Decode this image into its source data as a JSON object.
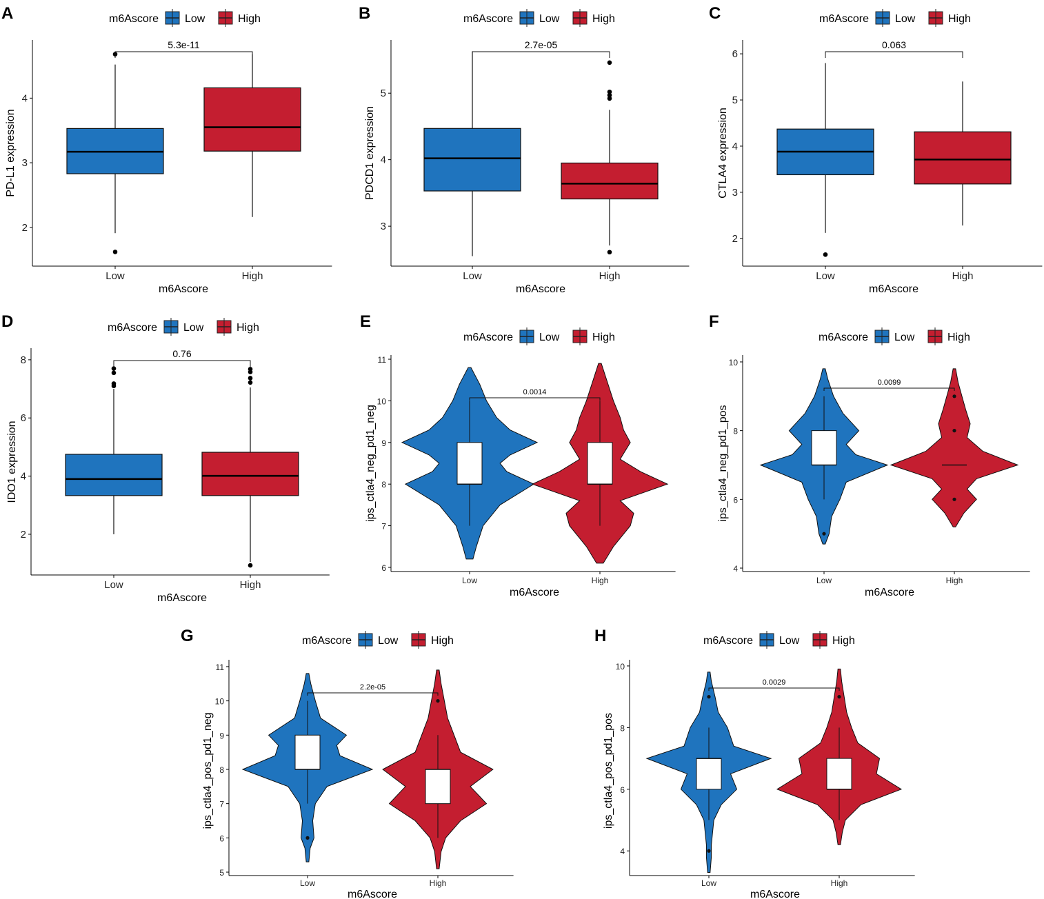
{
  "colors": {
    "low": "#1f74be",
    "high": "#c41e30"
  },
  "chart_data": [
    {
      "panel": "A",
      "type": "box",
      "title": "",
      "legend": {
        "title": "m6Ascore",
        "items": [
          "Low",
          "High"
        ]
      },
      "xlabel": "m6Ascore",
      "ylabel": "PD-L1 expression",
      "categories": [
        "Low",
        "High"
      ],
      "ylim": [
        1.4,
        4.9
      ],
      "yticks": [
        "2",
        "3",
        "4"
      ],
      "pvalue": "5.3e-11",
      "groups": [
        {
          "name": "Low",
          "q1": 2.83,
          "median": 3.17,
          "q3": 3.53,
          "whisker_low": 1.91,
          "whisker_high": 4.52,
          "outliers": [
            4.68,
            1.62
          ]
        },
        {
          "name": "High",
          "q1": 3.18,
          "median": 3.55,
          "q3": 4.16,
          "whisker_low": 2.16,
          "whisker_high": 4.68,
          "outliers": []
        }
      ]
    },
    {
      "panel": "B",
      "type": "box",
      "title": "",
      "legend": {
        "title": "m6Ascore",
        "items": [
          "Low",
          "High"
        ]
      },
      "xlabel": "m6Ascore",
      "ylabel": "PDCD1 expression",
      "categories": [
        "Low",
        "High"
      ],
      "ylim": [
        2.4,
        5.8
      ],
      "yticks": [
        "3",
        "4",
        "5"
      ],
      "pvalue": "2.7e-05",
      "groups": [
        {
          "name": "Low",
          "q1": 3.53,
          "median": 4.02,
          "q3": 4.47,
          "whisker_low": 2.55,
          "whisker_high": 5.63,
          "outliers": []
        },
        {
          "name": "High",
          "q1": 3.41,
          "median": 3.64,
          "q3": 3.95,
          "whisker_low": 2.71,
          "whisker_high": 4.75,
          "outliers": [
            5.46,
            5.02,
            4.97,
            4.92,
            2.61
          ]
        }
      ]
    },
    {
      "panel": "C",
      "type": "box",
      "title": "",
      "legend": {
        "title": "m6Ascore",
        "items": [
          "Low",
          "High"
        ]
      },
      "xlabel": "m6Ascore",
      "ylabel": "CTLA4 expression",
      "categories": [
        "Low",
        "High"
      ],
      "ylim": [
        1.4,
        6.3
      ],
      "yticks": [
        "2",
        "3",
        "4",
        "5",
        "6"
      ],
      "pvalue": "0.063",
      "groups": [
        {
          "name": "Low",
          "q1": 3.38,
          "median": 3.88,
          "q3": 4.37,
          "whisker_low": 2.12,
          "whisker_high": 5.8,
          "outliers": [
            1.65
          ]
        },
        {
          "name": "High",
          "q1": 3.18,
          "median": 3.71,
          "q3": 4.31,
          "whisker_low": 2.28,
          "whisker_high": 5.4,
          "outliers": []
        }
      ]
    },
    {
      "panel": "D",
      "type": "box",
      "title": "",
      "legend": {
        "title": "m6Ascore",
        "items": [
          "Low",
          "High"
        ]
      },
      "xlabel": "m6Ascore",
      "ylabel": "IDO1 expression",
      "categories": [
        "Low",
        "High"
      ],
      "ylim": [
        0.6,
        8.4
      ],
      "yticks": [
        "2",
        "4",
        "6",
        "8"
      ],
      "pvalue": "0.76",
      "groups": [
        {
          "name": "Low",
          "q1": 3.33,
          "median": 3.9,
          "q3": 4.75,
          "whisker_low": 2.0,
          "whisker_high": 7.0,
          "outliers": [
            7.7,
            7.55,
            7.18,
            7.1
          ]
        },
        {
          "name": "High",
          "q1": 3.33,
          "median": 4.01,
          "q3": 4.82,
          "whisker_low": 1.05,
          "whisker_high": 7.05,
          "outliers": [
            7.68,
            7.58,
            7.37,
            7.22,
            0.93
          ]
        }
      ]
    },
    {
      "panel": "E",
      "type": "violin",
      "title": "",
      "legend": {
        "title": "m6Ascore",
        "items": [
          "Low",
          "High"
        ]
      },
      "xlabel": "m6Ascore",
      "ylabel": "ips_ctla4_neg_pd1_neg",
      "categories": [
        "Low",
        "High"
      ],
      "ylim": [
        5.9,
        11.1
      ],
      "yticks": [
        "6",
        "7",
        "8",
        "9",
        "10",
        "11"
      ],
      "pvalue": "0.0014",
      "groups": [
        {
          "name": "Low",
          "q1": 8,
          "median": 8,
          "q3": 9,
          "whisker_low": 7,
          "whisker_high": 10,
          "outliers": [],
          "density": [
            [
              6.2,
              0.05
            ],
            [
              6.5,
              0.1
            ],
            [
              7.0,
              0.2
            ],
            [
              7.5,
              0.45
            ],
            [
              8.0,
              0.95
            ],
            [
              8.3,
              0.55
            ],
            [
              8.5,
              0.45
            ],
            [
              8.7,
              0.6
            ],
            [
              9.0,
              1.0
            ],
            [
              9.3,
              0.6
            ],
            [
              9.6,
              0.4
            ],
            [
              10.0,
              0.25
            ],
            [
              10.4,
              0.15
            ],
            [
              10.8,
              0.02
            ]
          ]
        },
        {
          "name": "High",
          "q1": 8,
          "median": 8,
          "q3": 9,
          "whisker_low": 7,
          "whisker_high": 10,
          "outliers": [],
          "density": [
            [
              6.1,
              0.05
            ],
            [
              6.5,
              0.2
            ],
            [
              7.0,
              0.45
            ],
            [
              7.3,
              0.5
            ],
            [
              7.6,
              0.3
            ],
            [
              8.0,
              1.0
            ],
            [
              8.3,
              0.6
            ],
            [
              8.6,
              0.3
            ],
            [
              9.0,
              0.45
            ],
            [
              9.3,
              0.35
            ],
            [
              9.6,
              0.3
            ],
            [
              10.0,
              0.2
            ],
            [
              10.5,
              0.1
            ],
            [
              10.9,
              0.02
            ]
          ]
        }
      ]
    },
    {
      "panel": "F",
      "type": "violin",
      "title": "",
      "legend": {
        "title": "m6Ascore",
        "items": [
          "Low",
          "High"
        ]
      },
      "xlabel": "m6Ascore",
      "ylabel": "ips_ctla4_neg_pd1_pos",
      "categories": [
        "Low",
        "High"
      ],
      "ylim": [
        3.9,
        10.2
      ],
      "yticks": [
        "4",
        "6",
        "8",
        "10"
      ],
      "pvalue": "0.0099",
      "groups": [
        {
          "name": "Low",
          "q1": 7,
          "median": 7,
          "q3": 8,
          "whisker_low": 6,
          "whisker_high": 9,
          "outliers": [
            5
          ],
          "density": [
            [
              4.7,
              0.02
            ],
            [
              5.0,
              0.08
            ],
            [
              5.5,
              0.12
            ],
            [
              6.0,
              0.25
            ],
            [
              6.5,
              0.35
            ],
            [
              7.0,
              1.0
            ],
            [
              7.3,
              0.5
            ],
            [
              7.6,
              0.35
            ],
            [
              8.0,
              0.55
            ],
            [
              8.5,
              0.3
            ],
            [
              9.0,
              0.15
            ],
            [
              9.5,
              0.06
            ],
            [
              9.8,
              0.02
            ]
          ]
        },
        {
          "name": "High",
          "q1": 7,
          "median": 7,
          "q3": 7,
          "whisker_low": 7,
          "whisker_high": 7,
          "outliers": [
            9,
            8,
            6
          ],
          "density": [
            [
              5.2,
              0.02
            ],
            [
              5.6,
              0.15
            ],
            [
              6.0,
              0.35
            ],
            [
              6.3,
              0.2
            ],
            [
              6.6,
              0.35
            ],
            [
              7.0,
              1.0
            ],
            [
              7.4,
              0.45
            ],
            [
              7.8,
              0.2
            ],
            [
              8.2,
              0.25
            ],
            [
              8.6,
              0.18
            ],
            [
              9.0,
              0.12
            ],
            [
              9.4,
              0.06
            ],
            [
              9.8,
              0.02
            ]
          ]
        }
      ]
    },
    {
      "panel": "G",
      "type": "violin",
      "title": "",
      "legend": {
        "title": "m6Ascore",
        "items": [
          "Low",
          "High"
        ]
      },
      "xlabel": "m6Ascore",
      "ylabel": "ips_ctla4_pos_pd1_neg",
      "categories": [
        "Low",
        "High"
      ],
      "ylim": [
        4.9,
        11.2
      ],
      "yticks": [
        "5",
        "6",
        "7",
        "8",
        "9",
        "10",
        "11"
      ],
      "pvalue": "2.2e-05",
      "groups": [
        {
          "name": "Low",
          "q1": 8,
          "median": 8,
          "q3": 9,
          "whisker_low": 7,
          "whisker_high": 10,
          "outliers": [
            6
          ],
          "density": [
            [
              5.3,
              0.02
            ],
            [
              5.7,
              0.04
            ],
            [
              6.0,
              0.1
            ],
            [
              6.5,
              0.08
            ],
            [
              7.0,
              0.12
            ],
            [
              7.5,
              0.3
            ],
            [
              8.0,
              1.0
            ],
            [
              8.4,
              0.5
            ],
            [
              8.7,
              0.45
            ],
            [
              9.0,
              0.6
            ],
            [
              9.5,
              0.2
            ],
            [
              10.0,
              0.12
            ],
            [
              10.5,
              0.05
            ],
            [
              10.8,
              0.02
            ]
          ]
        },
        {
          "name": "High",
          "q1": 7,
          "median": 8,
          "q3": 8,
          "whisker_low": 6,
          "whisker_high": 9,
          "outliers": [
            10
          ],
          "density": [
            [
              5.1,
              0.02
            ],
            [
              5.6,
              0.05
            ],
            [
              6.0,
              0.12
            ],
            [
              6.5,
              0.35
            ],
            [
              7.0,
              0.75
            ],
            [
              7.5,
              0.5
            ],
            [
              8.0,
              0.85
            ],
            [
              8.5,
              0.35
            ],
            [
              9.0,
              0.25
            ],
            [
              9.5,
              0.15
            ],
            [
              10.0,
              0.1
            ],
            [
              10.5,
              0.05
            ],
            [
              10.9,
              0.02
            ]
          ]
        }
      ]
    },
    {
      "panel": "H",
      "type": "violin",
      "title": "",
      "legend": {
        "title": "m6Ascore",
        "items": [
          "Low",
          "High"
        ]
      },
      "xlabel": "m6Ascore",
      "ylabel": "ips_ctla4_pos_pd1_pos",
      "categories": [
        "Low",
        "High"
      ],
      "ylim": [
        3.2,
        10.2
      ],
      "yticks": [
        "4",
        "6",
        "8",
        "10"
      ],
      "pvalue": "0.0029",
      "groups": [
        {
          "name": "Low",
          "q1": 6,
          "median": 7,
          "q3": 7,
          "whisker_low": 5,
          "whisker_high": 8,
          "outliers": [
            9,
            4
          ],
          "density": [
            [
              3.3,
              0.02
            ],
            [
              3.8,
              0.04
            ],
            [
              4.2,
              0.04
            ],
            [
              5.0,
              0.08
            ],
            [
              5.5,
              0.2
            ],
            [
              6.0,
              0.45
            ],
            [
              6.5,
              0.35
            ],
            [
              7.0,
              1.0
            ],
            [
              7.4,
              0.4
            ],
            [
              8.0,
              0.3
            ],
            [
              8.5,
              0.15
            ],
            [
              9.0,
              0.1
            ],
            [
              9.5,
              0.04
            ],
            [
              9.8,
              0.02
            ]
          ]
        },
        {
          "name": "High",
          "q1": 6,
          "median": 6,
          "q3": 7,
          "whisker_low": 5,
          "whisker_high": 8,
          "outliers": [
            9
          ],
          "density": [
            [
              4.2,
              0.02
            ],
            [
              4.6,
              0.05
            ],
            [
              5.0,
              0.1
            ],
            [
              5.5,
              0.35
            ],
            [
              6.0,
              1.0
            ],
            [
              6.5,
              0.6
            ],
            [
              7.0,
              0.65
            ],
            [
              7.5,
              0.3
            ],
            [
              8.0,
              0.2
            ],
            [
              8.5,
              0.12
            ],
            [
              9.0,
              0.08
            ],
            [
              9.5,
              0.04
            ],
            [
              9.9,
              0.02
            ]
          ]
        }
      ]
    }
  ]
}
